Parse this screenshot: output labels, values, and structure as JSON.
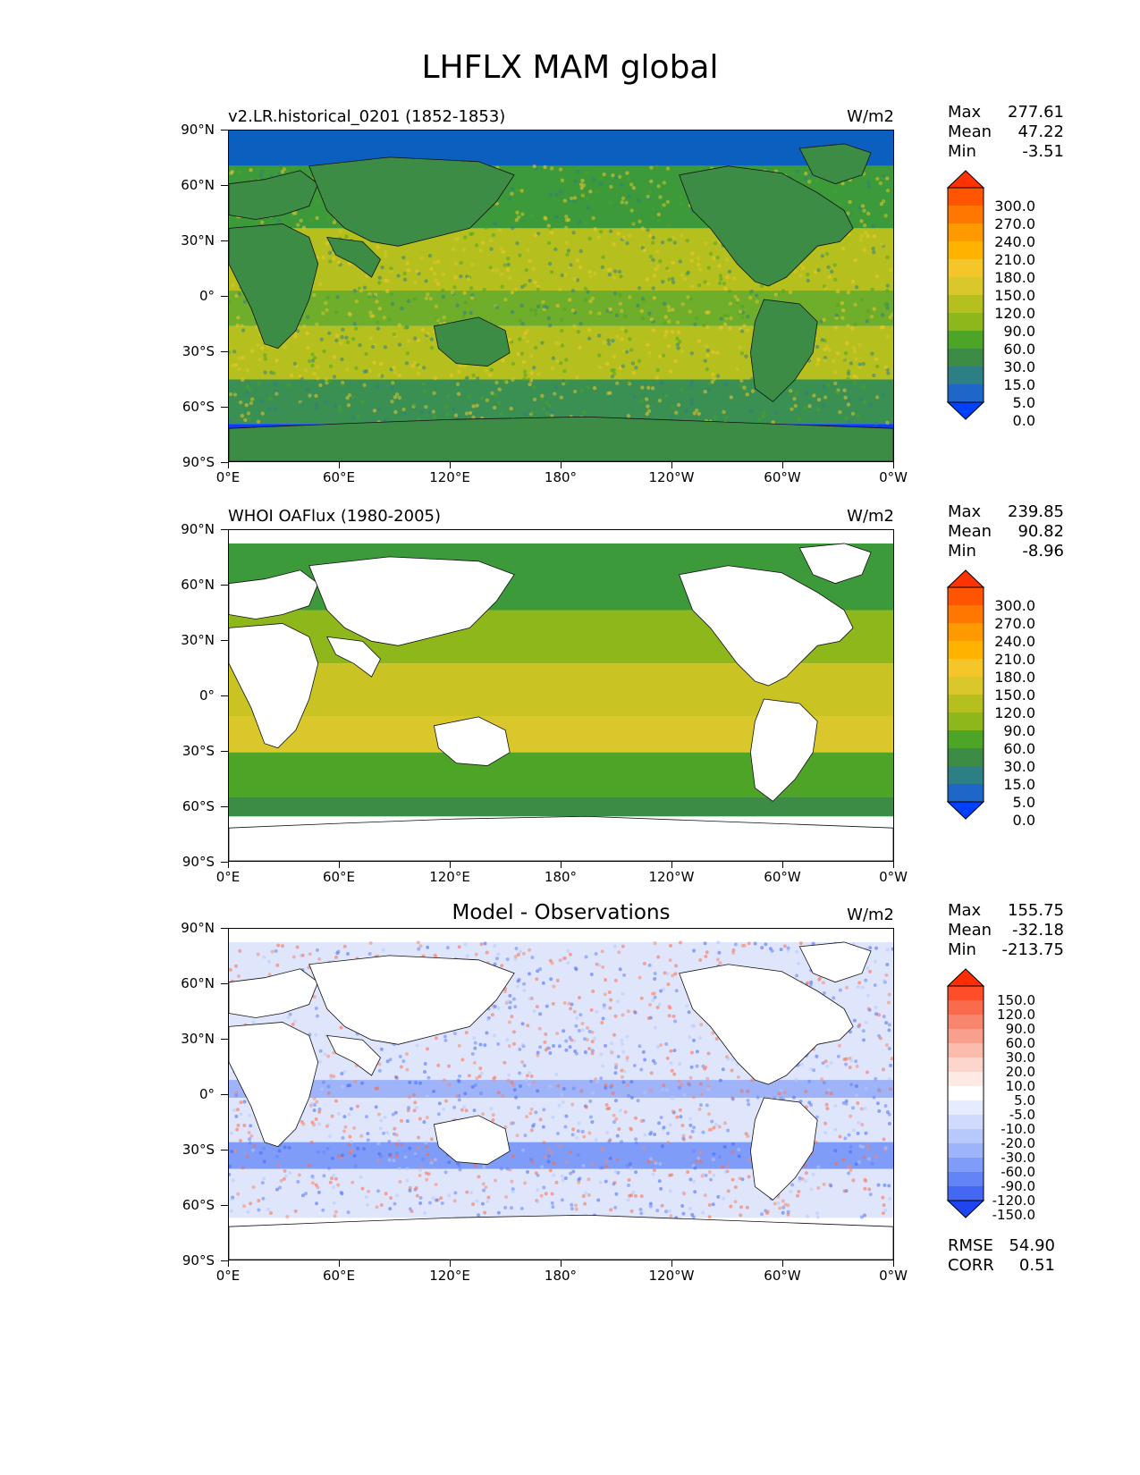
{
  "figure": {
    "title": "LHFLX MAM global"
  },
  "axes": {
    "y_ticks": [
      "90°N",
      "60°N",
      "30°N",
      "0°",
      "30°S",
      "60°S",
      "90°S"
    ],
    "x_ticks": [
      "0°E",
      "60°E",
      "120°E",
      "180°",
      "120°W",
      "60°W",
      "0°W"
    ]
  },
  "panels": [
    {
      "title_left": "v2.LR.historical_0201 (1852-1853)",
      "title_center": "",
      "units": "W/m2",
      "stats": [
        {
          "label": "Max",
          "value": "277.61"
        },
        {
          "label": "Mean",
          "value": "47.22"
        },
        {
          "label": "Min",
          "value": "-3.51"
        }
      ],
      "colorbar_labels": [
        "300.0",
        "270.0",
        "240.0",
        "210.0",
        "180.0",
        "150.0",
        "120.0",
        "90.0",
        "60.0",
        "30.0",
        "15.0",
        "5.0",
        "0.0"
      ],
      "colorbar_colors": [
        "#ff3300",
        "#ff5500",
        "#ff7700",
        "#ff9900",
        "#ffb300",
        "#f5c62a",
        "#d9c72b",
        "#b5c01e",
        "#8db71a",
        "#4da426",
        "#3d8c46",
        "#2d7f85",
        "#1f66c9",
        "#0040ff"
      ]
    },
    {
      "title_left": "WHOI OAFlux (1980-2005)",
      "title_center": "",
      "units": "W/m2",
      "stats": [
        {
          "label": "Max",
          "value": "239.85"
        },
        {
          "label": "Mean",
          "value": "90.82"
        },
        {
          "label": "Min",
          "value": "-8.96"
        }
      ],
      "colorbar_labels": [
        "300.0",
        "270.0",
        "240.0",
        "210.0",
        "180.0",
        "150.0",
        "120.0",
        "90.0",
        "60.0",
        "30.0",
        "15.0",
        "5.0",
        "0.0"
      ],
      "colorbar_colors": [
        "#ff3300",
        "#ff5500",
        "#ff7700",
        "#ff9900",
        "#ffb300",
        "#f5c62a",
        "#d9c72b",
        "#b5c01e",
        "#8db71a",
        "#4da426",
        "#3d8c46",
        "#2d7f85",
        "#1f66c9",
        "#0040ff"
      ]
    },
    {
      "title_left": "",
      "title_center": "Model - Observations",
      "units": "W/m2",
      "stats": [
        {
          "label": "Max",
          "value": "155.75"
        },
        {
          "label": "Mean",
          "value": "-32.18"
        },
        {
          "label": "Min",
          "value": "-213.75"
        }
      ],
      "colorbar_labels": [
        "150.0",
        "120.0",
        "90.0",
        "60.0",
        "30.0",
        "20.0",
        "10.0",
        "5.0",
        "-5.0",
        "-10.0",
        "-20.0",
        "-30.0",
        "-60.0",
        "-90.0",
        "-120.0",
        "-150.0"
      ],
      "colorbar_colors": [
        "#ff2d00",
        "#ff4d2a",
        "#fa6a4d",
        "#f8866e",
        "#f8a08d",
        "#fbbcae",
        "#fcd6cd",
        "#fdeae5",
        "#ffffff",
        "#e6ecfd",
        "#cfdafc",
        "#b7c8fb",
        "#9db4fa",
        "#7f9cf8",
        "#6384f6",
        "#4468f4",
        "#1f45f2"
      ],
      "metrics": [
        {
          "label": "RMSE",
          "value": "54.90"
        },
        {
          "label": "CORR",
          "value": "0.51"
        }
      ]
    }
  ]
}
